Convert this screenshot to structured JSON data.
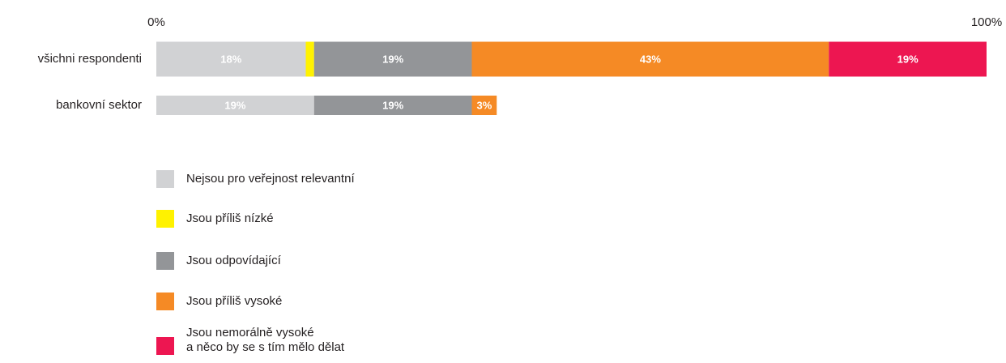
{
  "chart_data": {
    "type": "stacked-bar-horizontal",
    "categories": [
      "všichni respondenti",
      "bankovní sektor"
    ],
    "xlim": [
      0,
      100
    ],
    "xticks": [
      {
        "value": 0,
        "label": "0%"
      },
      {
        "value": 100,
        "label": "100%"
      }
    ],
    "series": [
      {
        "name": "Nejsou pro veřejnost relevantní",
        "color": "#d1d2d4",
        "values": [
          18,
          19
        ],
        "value_labels": [
          "18%",
          "19%"
        ]
      },
      {
        "name": "Jsou příliš nízké",
        "color": "#fff200",
        "values": [
          1,
          null
        ]
      },
      {
        "name": "Jsou odpovídající",
        "color": "#939598",
        "values": [
          19,
          19
        ],
        "value_labels": [
          "19%",
          "19%"
        ]
      },
      {
        "name": "Jsou příliš vysoké",
        "color": "#f58a25",
        "values": [
          43,
          3
        ],
        "value_labels": [
          "43%",
          "3%"
        ]
      },
      {
        "name": "Jsou nemorálně vysoké\na něco by se s tím mělo dělat",
        "color": "#ed1651",
        "values": [
          19,
          null
        ],
        "value_labels": [
          "19%",
          null
        ]
      }
    ]
  }
}
